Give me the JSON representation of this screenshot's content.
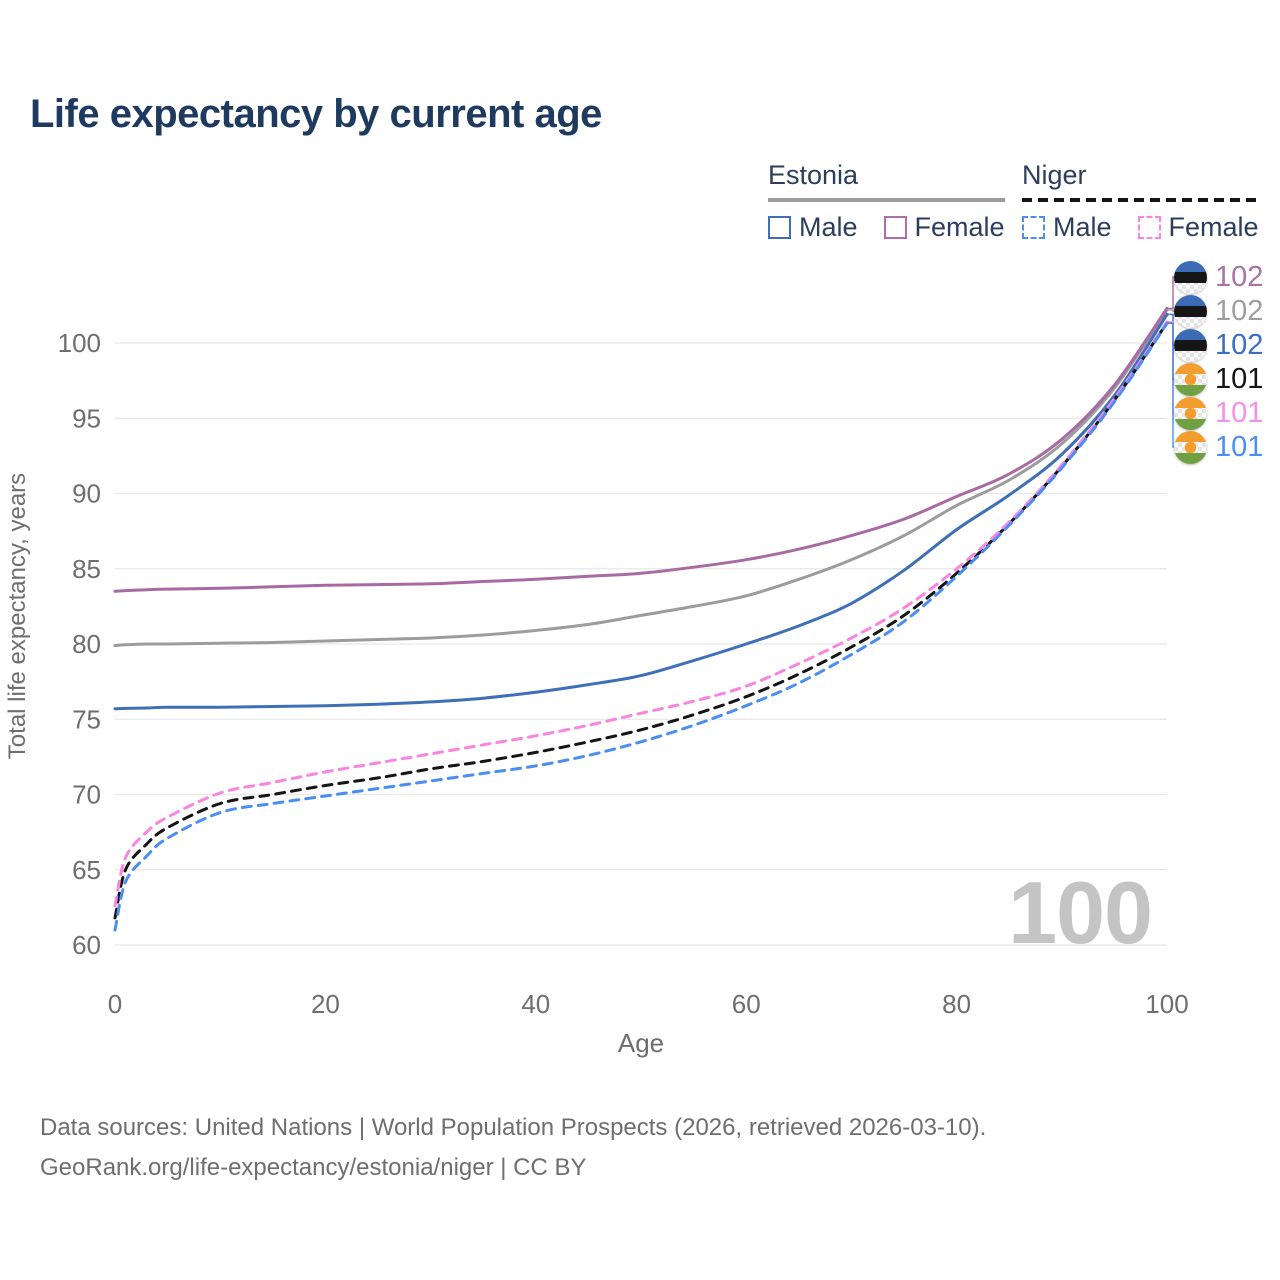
{
  "title": "Life expectancy by current age",
  "legend": {
    "groups": [
      {
        "name": "Estonia",
        "underline_style": "solid",
        "underline_color": "#9c9c9c",
        "items": [
          {
            "label": "Male",
            "color": "#3e6fb7",
            "dashed": false
          },
          {
            "label": "Female",
            "color": "#b06dab",
            "dashed": false
          }
        ]
      },
      {
        "name": "Niger",
        "underline_style": "dashed",
        "underline_color": "#141414",
        "items": [
          {
            "label": "Male",
            "color": "#4b8ef2",
            "dashed": true
          },
          {
            "label": "Female",
            "color": "#f985e0",
            "dashed": true
          }
        ]
      }
    ]
  },
  "watermark": "100",
  "chart_data": {
    "type": "line",
    "title": "Life expectancy by current age",
    "xlabel": "Age",
    "ylabel": "Total life expectancy, years",
    "xticks": [
      0,
      20,
      40,
      60,
      80,
      100
    ],
    "yticks": [
      60,
      65,
      70,
      75,
      80,
      85,
      90,
      95,
      100
    ],
    "xlim": [
      0,
      100
    ],
    "ylim": [
      60,
      100
    ],
    "grid": "horizontal",
    "grid_color": "#e8e8e8",
    "x": [
      0,
      1,
      3,
      5,
      10,
      15,
      20,
      25,
      30,
      35,
      40,
      45,
      50,
      55,
      60,
      65,
      70,
      75,
      80,
      85,
      90,
      95,
      100
    ],
    "series": [
      {
        "name": "Estonia Female",
        "country": "Estonia",
        "sex": "Female",
        "color": "#a86aa3",
        "dashed": false,
        "end_label": "102",
        "flag": "estonia",
        "values": [
          83.5,
          83.55,
          83.6,
          83.65,
          83.7,
          83.8,
          83.9,
          83.95,
          84.0,
          84.15,
          84.3,
          84.5,
          84.7,
          85.1,
          85.6,
          86.3,
          87.2,
          88.3,
          89.8,
          91.3,
          93.6,
          97.2,
          102.3
        ]
      },
      {
        "name": "Estonia Male + Female",
        "country": "Estonia",
        "sex": "All",
        "color": "#9c9c9c",
        "dashed": false,
        "end_label": "102",
        "flag": "estonia",
        "values": [
          79.9,
          79.95,
          80.0,
          80.0,
          80.05,
          80.1,
          80.2,
          80.3,
          80.4,
          80.6,
          80.9,
          81.3,
          81.9,
          82.5,
          83.2,
          84.3,
          85.6,
          87.2,
          89.2,
          90.9,
          93.3,
          97.0,
          102.2
        ]
      },
      {
        "name": "Estonia Male",
        "country": "Estonia",
        "sex": "Male",
        "color": "#3e6fb7",
        "dashed": false,
        "end_label": "102",
        "flag": "estonia",
        "values": [
          75.7,
          75.72,
          75.75,
          75.8,
          75.8,
          75.85,
          75.9,
          76.0,
          76.15,
          76.4,
          76.8,
          77.3,
          77.9,
          78.9,
          80.0,
          81.2,
          82.7,
          84.9,
          87.6,
          89.9,
          92.6,
          96.5,
          101.9
        ]
      },
      {
        "name": "Niger Male + Female",
        "country": "Niger",
        "sex": "All",
        "color": "#141414",
        "dashed": true,
        "end_label": "101",
        "flag": "niger",
        "values": [
          61.8,
          65.0,
          66.7,
          67.8,
          69.4,
          70.0,
          70.6,
          71.1,
          71.7,
          72.2,
          72.8,
          73.5,
          74.3,
          75.3,
          76.5,
          78.0,
          79.8,
          81.9,
          84.7,
          88.0,
          91.8,
          96.2,
          101.35
        ]
      },
      {
        "name": "Niger Female",
        "country": "Niger",
        "sex": "Female",
        "color": "#f985e0",
        "dashed": true,
        "end_label": "101",
        "flag": "niger",
        "values": [
          62.6,
          65.8,
          67.5,
          68.5,
          70.1,
          70.8,
          71.5,
          72.1,
          72.7,
          73.3,
          73.9,
          74.6,
          75.4,
          76.2,
          77.2,
          78.7,
          80.4,
          82.4,
          85.0,
          88.1,
          91.9,
          96.3,
          101.4
        ]
      },
      {
        "name": "Niger Male",
        "country": "Niger",
        "sex": "Male",
        "color": "#4b8ef2",
        "dashed": true,
        "end_label": "101",
        "flag": "niger",
        "values": [
          61.0,
          64.2,
          65.9,
          67.1,
          68.8,
          69.4,
          69.9,
          70.4,
          70.9,
          71.4,
          71.9,
          72.6,
          73.5,
          74.6,
          75.9,
          77.4,
          79.3,
          81.5,
          84.5,
          87.9,
          91.7,
          96.1,
          101.3
        ]
      }
    ],
    "end_label_colors": [
      "#a874a8",
      "#9e9e9e",
      "#3a6fc4",
      "#141414",
      "#f78fe8",
      "#4b8ef5"
    ]
  },
  "colors": {
    "title": "#1f3a5f",
    "axis_text": "#6e6e6e",
    "grid": "#e8e8e8",
    "watermark": "#c4c4c4"
  },
  "flags": {
    "estonia": {
      "name": "estonia-flag",
      "stripes": [
        "#3b6cb5",
        "#161616",
        "#ffffff"
      ]
    },
    "niger": {
      "name": "niger-flag",
      "top": "#f39d2f",
      "middle": "#ffffff",
      "bottom": "#71a043",
      "dot": "#f39d2f"
    }
  },
  "footer": {
    "line1": "Data sources: United Nations | World Population Prospects (2026, retrieved 2026-03-10).",
    "line2": "GeoRank.org/life-expectancy/estonia/niger | CC BY"
  }
}
